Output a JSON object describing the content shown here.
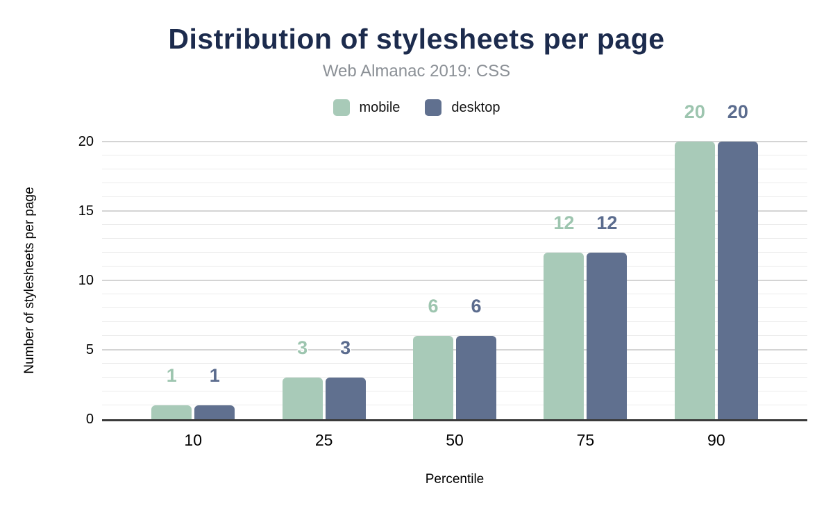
{
  "chart_data": {
    "type": "bar",
    "title": "Distribution of stylesheets per page",
    "subtitle": "Web Almanac 2019: CSS",
    "categories": [
      "10",
      "25",
      "50",
      "75",
      "90"
    ],
    "series": [
      {
        "name": "mobile",
        "color": "#a8cab8",
        "label_color": "#9dc5af",
        "values": [
          1,
          3,
          6,
          12,
          20
        ]
      },
      {
        "name": "desktop",
        "color": "#60708f",
        "label_color": "#5b6c8e",
        "values": [
          1,
          3,
          6,
          12,
          20
        ]
      }
    ],
    "xlabel": "Percentile",
    "ylabel": "Number of stylesheets per page",
    "ylim": [
      0,
      20
    ],
    "yticks": [
      0,
      5,
      10,
      15,
      20
    ],
    "minor_gridline_step": 1,
    "major_gridline_step": 5,
    "grid": true,
    "legend_position": "top",
    "data_labels": true,
    "colors": {
      "title": "#1c2b4d",
      "subtitle": "#8b9096",
      "axis_line": "#3a3a3a",
      "major_gridline": "#d4d4d4",
      "minor_gridline": "#ebebeb"
    }
  }
}
